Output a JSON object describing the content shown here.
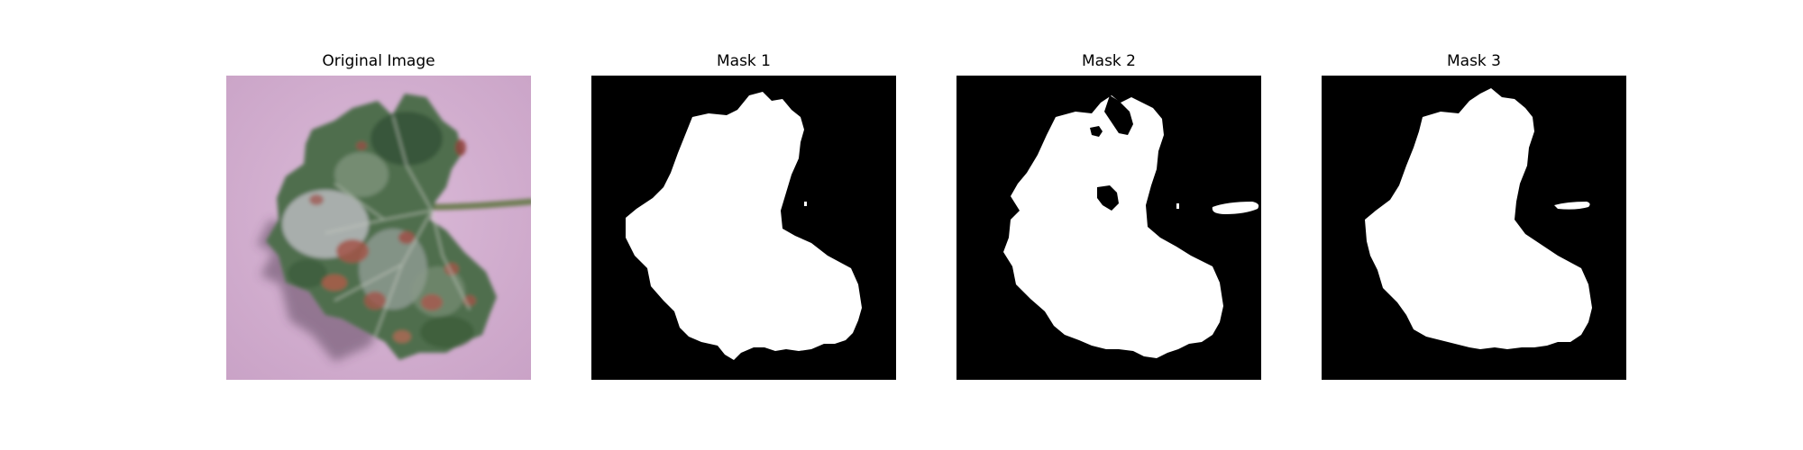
{
  "figure": {
    "panels": [
      {
        "title": "Original Image",
        "kind": "photo",
        "subject": "leaf-image"
      },
      {
        "title": "Mask 1",
        "kind": "mask"
      },
      {
        "title": "Mask 2",
        "kind": "mask"
      },
      {
        "title": "Mask 3",
        "kind": "mask"
      }
    ]
  },
  "colors": {
    "background": "#ffffff",
    "mask_background": "#000000",
    "mask_foreground": "#ffffff",
    "photo_background": "#d4b0d2",
    "leaf_dark": "#3d5a3d",
    "leaf_mid": "#5f7e5c",
    "leaf_light": "#c9c7cf",
    "lesion": "#a3554a",
    "stem": "#6f7e55",
    "shadow": "#5f4a60"
  }
}
